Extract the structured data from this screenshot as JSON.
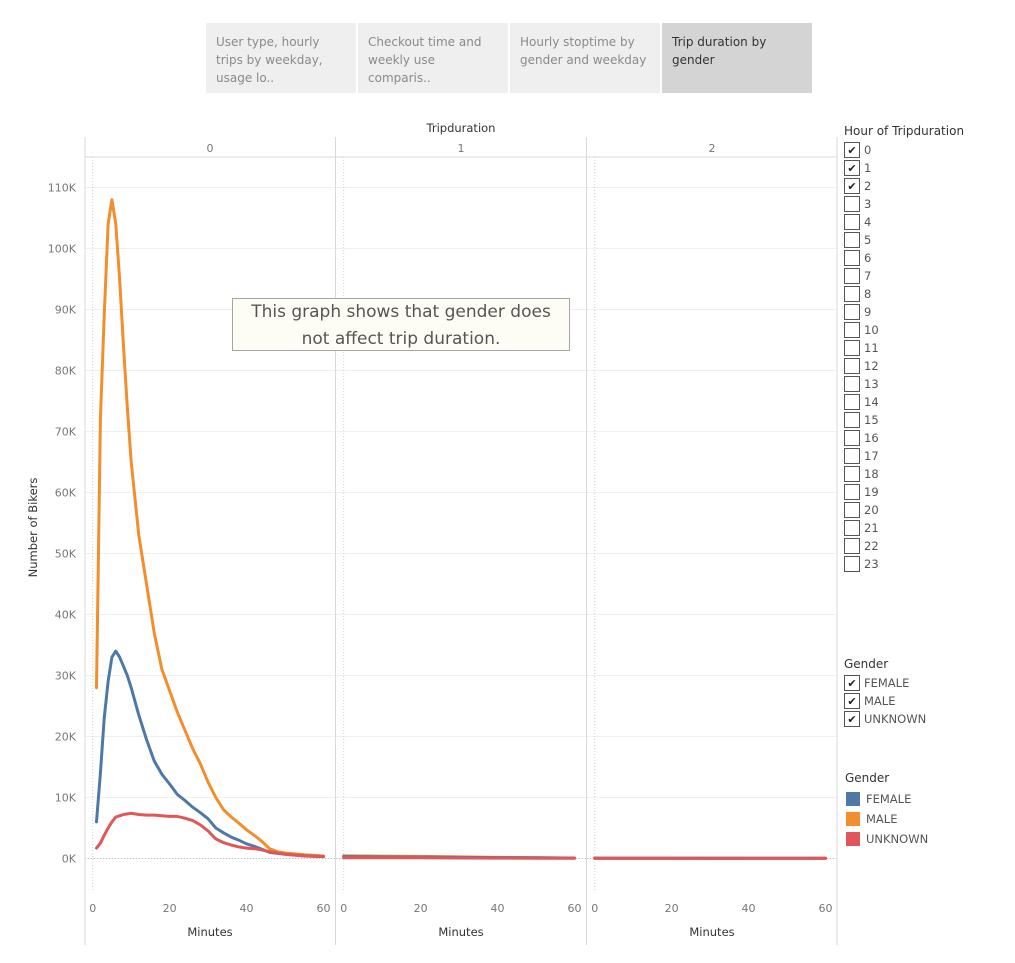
{
  "tabs": [
    {
      "label": "User type, hourly trips by weekday, usage lo.."
    },
    {
      "label": "Checkout time and weekly use comparis.."
    },
    {
      "label": "Hourly stoptime by gender and weekday"
    },
    {
      "label": "Trip duration by gender",
      "active": true
    }
  ],
  "annotation": {
    "line1": "This graph shows that gender does",
    "line2": "not affect trip duration."
  },
  "filters": {
    "hour": {
      "title": "Hour of Tripduration",
      "items": [
        {
          "label": "0",
          "checked": true
        },
        {
          "label": "1",
          "checked": true
        },
        {
          "label": "2",
          "checked": true
        },
        {
          "label": "3",
          "checked": false
        },
        {
          "label": "4",
          "checked": false
        },
        {
          "label": "5",
          "checked": false
        },
        {
          "label": "6",
          "checked": false
        },
        {
          "label": "7",
          "checked": false
        },
        {
          "label": "8",
          "checked": false
        },
        {
          "label": "9",
          "checked": false
        },
        {
          "label": "10",
          "checked": false
        },
        {
          "label": "11",
          "checked": false
        },
        {
          "label": "12",
          "checked": false
        },
        {
          "label": "13",
          "checked": false
        },
        {
          "label": "14",
          "checked": false
        },
        {
          "label": "15",
          "checked": false
        },
        {
          "label": "16",
          "checked": false
        },
        {
          "label": "17",
          "checked": false
        },
        {
          "label": "18",
          "checked": false
        },
        {
          "label": "19",
          "checked": false
        },
        {
          "label": "20",
          "checked": false
        },
        {
          "label": "21",
          "checked": false
        },
        {
          "label": "22",
          "checked": false
        },
        {
          "label": "23",
          "checked": false
        }
      ]
    },
    "gender": {
      "title": "Gender",
      "items": [
        {
          "label": "FEMALE",
          "checked": true
        },
        {
          "label": "MALE",
          "checked": true
        },
        {
          "label": "UNKNOWN",
          "checked": true
        }
      ]
    }
  },
  "legend": {
    "title": "Gender",
    "items": [
      {
        "label": "FEMALE",
        "color": "#4e79a7"
      },
      {
        "label": "MALE",
        "color": "#f28e2b"
      },
      {
        "label": "UNKNOWN",
        "color": "#e15759"
      }
    ]
  },
  "chart_data": {
    "type": "line",
    "title": "",
    "column_header": "Tripduration",
    "xlabel": "Minutes",
    "ylabel": "Number of Bikers",
    "ylim": [
      -5500,
      115000
    ],
    "xlim": [
      -2,
      63
    ],
    "yticks": [
      0,
      10000,
      20000,
      30000,
      40000,
      50000,
      60000,
      70000,
      80000,
      90000,
      100000,
      110000
    ],
    "ytick_labels": [
      "0K",
      "10K",
      "20K",
      "30K",
      "40K",
      "50K",
      "60K",
      "70K",
      "80K",
      "90K",
      "100K",
      "110K"
    ],
    "xticks": [
      0,
      20,
      40,
      60
    ],
    "xtick_labels": [
      "0",
      "20",
      "40",
      "60"
    ],
    "grid": true,
    "legend_position": "right",
    "panes": [
      {
        "label": "0",
        "series": [
          {
            "name": "MALE",
            "color": "#f28e2b",
            "points": [
              [
                1,
                28000
              ],
              [
                2,
                72000
              ],
              [
                3,
                89000
              ],
              [
                4,
                104000
              ],
              [
                5,
                108000
              ],
              [
                6,
                104000
              ],
              [
                7,
                95000
              ],
              [
                8,
                84000
              ],
              [
                9,
                74000
              ],
              [
                10,
                65000
              ],
              [
                12,
                53000
              ],
              [
                14,
                45000
              ],
              [
                16,
                37000
              ],
              [
                18,
                31000
              ],
              [
                20,
                27500
              ],
              [
                22,
                24000
              ],
              [
                24,
                21000
              ],
              [
                26,
                18000
              ],
              [
                28,
                15500
              ],
              [
                30,
                12500
              ],
              [
                32,
                10000
              ],
              [
                34,
                8000
              ],
              [
                36,
                6800
              ],
              [
                38,
                5800
              ],
              [
                40,
                4700
              ],
              [
                42,
                3800
              ],
              [
                44,
                2800
              ],
              [
                46,
                1600
              ],
              [
                48,
                1100
              ],
              [
                50,
                900
              ],
              [
                55,
                600
              ],
              [
                60,
                400
              ]
            ]
          },
          {
            "name": "FEMALE",
            "color": "#4e79a7",
            "points": [
              [
                1,
                6000
              ],
              [
                2,
                14000
              ],
              [
                3,
                23000
              ],
              [
                4,
                29000
              ],
              [
                5,
                33000
              ],
              [
                6,
                34000
              ],
              [
                7,
                33000
              ],
              [
                8,
                31500
              ],
              [
                9,
                30000
              ],
              [
                10,
                28000
              ],
              [
                12,
                23500
              ],
              [
                14,
                19500
              ],
              [
                16,
                16000
              ],
              [
                18,
                13800
              ],
              [
                20,
                12200
              ],
              [
                22,
                10500
              ],
              [
                24,
                9500
              ],
              [
                26,
                8400
              ],
              [
                28,
                7500
              ],
              [
                30,
                6500
              ],
              [
                32,
                5000
              ],
              [
                34,
                4200
              ],
              [
                36,
                3500
              ],
              [
                38,
                3000
              ],
              [
                40,
                2400
              ],
              [
                42,
                2000
              ],
              [
                44,
                1500
              ],
              [
                46,
                1000
              ],
              [
                50,
                700
              ],
              [
                55,
                450
              ],
              [
                60,
                300
              ]
            ]
          },
          {
            "name": "UNKNOWN",
            "color": "#e15759",
            "points": [
              [
                1,
                1700
              ],
              [
                2,
                2500
              ],
              [
                3,
                3800
              ],
              [
                4,
                5000
              ],
              [
                5,
                6000
              ],
              [
                6,
                6800
              ],
              [
                7,
                7000
              ],
              [
                8,
                7200
              ],
              [
                10,
                7400
              ],
              [
                12,
                7200
              ],
              [
                14,
                7100
              ],
              [
                16,
                7100
              ],
              [
                18,
                7000
              ],
              [
                20,
                6900
              ],
              [
                22,
                6900
              ],
              [
                24,
                6600
              ],
              [
                26,
                6200
              ],
              [
                28,
                5500
              ],
              [
                30,
                4500
              ],
              [
                32,
                3200
              ],
              [
                34,
                2600
              ],
              [
                36,
                2200
              ],
              [
                38,
                1900
              ],
              [
                40,
                1700
              ],
              [
                42,
                1600
              ],
              [
                44,
                1400
              ],
              [
                46,
                1100
              ],
              [
                50,
                700
              ],
              [
                55,
                400
              ],
              [
                60,
                300
              ]
            ]
          }
        ]
      },
      {
        "label": "1",
        "series": [
          {
            "name": "MALE",
            "color": "#f28e2b",
            "points": [
              [
                0,
                450
              ],
              [
                10,
                380
              ],
              [
                20,
                330
              ],
              [
                30,
                250
              ],
              [
                40,
                180
              ],
              [
                50,
                130
              ],
              [
                60,
                80
              ]
            ]
          },
          {
            "name": "FEMALE",
            "color": "#4e79a7",
            "points": [
              [
                0,
                300
              ],
              [
                10,
                250
              ],
              [
                20,
                220
              ],
              [
                30,
                180
              ],
              [
                40,
                140
              ],
              [
                50,
                100
              ],
              [
                60,
                60
              ]
            ]
          },
          {
            "name": "UNKNOWN",
            "color": "#e15759",
            "points": [
              [
                0,
                120
              ],
              [
                10,
                110
              ],
              [
                20,
                100
              ],
              [
                30,
                80
              ],
              [
                40,
                60
              ],
              [
                50,
                40
              ],
              [
                60,
                20
              ]
            ]
          }
        ]
      },
      {
        "label": "2",
        "series": [
          {
            "name": "MALE",
            "color": "#f28e2b",
            "points": [
              [
                0,
                60
              ],
              [
                20,
                50
              ],
              [
                40,
                45
              ],
              [
                60,
                40
              ]
            ]
          },
          {
            "name": "FEMALE",
            "color": "#4e79a7",
            "points": [
              [
                0,
                40
              ],
              [
                20,
                35
              ],
              [
                40,
                30
              ],
              [
                60,
                25
              ]
            ]
          },
          {
            "name": "UNKNOWN",
            "color": "#e15759",
            "points": [
              [
                0,
                20
              ],
              [
                20,
                15
              ],
              [
                40,
                15
              ],
              [
                60,
                10
              ]
            ]
          }
        ]
      }
    ]
  }
}
